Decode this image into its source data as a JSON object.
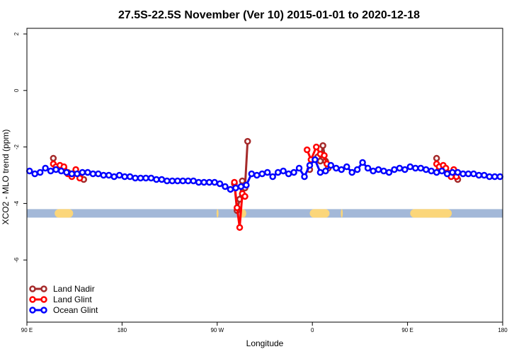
{
  "chart_data": {
    "type": "line",
    "title": "27.5S-22.5S November (Ver 10)   2015-01-01 to 2020-12-18",
    "xlabel": "Longitude",
    "ylabel": "XCO2 - MLO trend (ppm)",
    "xlim": [
      90,
      450
    ],
    "ylim": [
      -8.2,
      2.2
    ],
    "x_ticks": [
      {
        "value": 90,
        "label": "90 E"
      },
      {
        "value": 162,
        "label": "180"
      },
      {
        "value": 234,
        "label": "90 W"
      },
      {
        "value": 306,
        "label": "0"
      },
      {
        "value": 378,
        "label": "90 E"
      },
      {
        "value": 450,
        "label": "180"
      }
    ],
    "y_ticks": [
      {
        "value": 2,
        "label": "2"
      },
      {
        "value": 0,
        "label": "0"
      },
      {
        "value": -2,
        "label": "-2"
      },
      {
        "value": -4,
        "label": "-4"
      },
      {
        "value": -6,
        "label": "-6"
      }
    ],
    "land_band": {
      "y": -4.35,
      "ocean_color": "#a3b8d8",
      "land_color": "#fbd67a",
      "land_segments": [
        [
          111,
          125
        ],
        [
          233.5,
          235
        ],
        [
          251,
          256
        ],
        [
          304,
          319
        ],
        [
          327.5,
          329
        ],
        [
          380,
          411.5
        ]
      ]
    },
    "legend_position": "bottom-left",
    "series": [
      {
        "name": "Land Nadir",
        "color": "#a52a2a",
        "segments": [
          {
            "x": [
              110,
              112,
              115,
              118,
              121,
              124,
              127,
              130,
              133
            ],
            "y": [
              -2.4,
              -2.75,
              -2.7,
              -2.75,
              -2.9,
              -2.95,
              -2.9,
              -3.0,
              -3.15
            ]
          },
          {
            "x": [
              247,
              249,
              251,
              253,
              255,
              257
            ],
            "y": [
              -3.3,
              -4.25,
              -3.85,
              -3.2,
              -3.45,
              -1.8
            ]
          },
          {
            "x": [
              304,
              306,
              308,
              310,
              312,
              314,
              316,
              318
            ],
            "y": [
              -2.8,
              -2.45,
              -2.45,
              -2.35,
              -2.5,
              -1.95,
              -2.5,
              -2.75
            ]
          },
          {
            "x": [
              400,
              402,
              404,
              406,
              408,
              410,
              412,
              414,
              416
            ],
            "y": [
              -2.4,
              -2.75,
              -2.7,
              -2.75,
              -2.9,
              -2.95,
              -2.9,
              -3.0,
              -3.15
            ]
          }
        ]
      },
      {
        "name": "Land Glint",
        "color": "#ff0000",
        "segments": [
          {
            "x": [
              110,
              112,
              115,
              118,
              121,
              124,
              127,
              130
            ],
            "y": [
              -2.6,
              -2.7,
              -2.65,
              -2.7,
              -2.95,
              -3.05,
              -2.8,
              -3.1
            ]
          },
          {
            "x": [
              247,
              249,
              251,
              253,
              255
            ],
            "y": [
              -3.25,
              -4.15,
              -4.85,
              -3.65,
              -3.75
            ]
          },
          {
            "x": [
              302,
              305,
              309,
              312,
              315,
              317
            ],
            "y": [
              -2.1,
              -2.45,
              -2.0,
              -2.25,
              -2.3,
              -2.6
            ]
          },
          {
            "x": [
              400,
              402,
              405,
              407,
              409,
              411,
              413,
              415
            ],
            "y": [
              -2.6,
              -2.7,
              -2.65,
              -2.75,
              -2.95,
              -3.05,
              -2.8,
              -3.05
            ]
          }
        ]
      },
      {
        "name": "Ocean Glint",
        "color": "#0000ff",
        "segments": [
          {
            "x": [
              92,
              96,
              100,
              104,
              108,
              112,
              116,
              120,
              124,
              128,
              132,
              136,
              140,
              144,
              148,
              152,
              156,
              160,
              164,
              168,
              172,
              176,
              180,
              184,
              188,
              192,
              196,
              200,
              204,
              208,
              212,
              216,
              220,
              224,
              228,
              232,
              236,
              240,
              244,
              248,
              252,
              256,
              260,
              264,
              268,
              272,
              276,
              280,
              284,
              288,
              292,
              296,
              300,
              304,
              308,
              312,
              316,
              320,
              324,
              328,
              332,
              336,
              340,
              344,
              348,
              352,
              356,
              360,
              364,
              368,
              372,
              376,
              380,
              384,
              388,
              392,
              396,
              400,
              404,
              408,
              412,
              416,
              420,
              424,
              428,
              432,
              436,
              440,
              444,
              448
            ],
            "y": [
              -2.85,
              -2.95,
              -2.9,
              -2.75,
              -2.85,
              -2.8,
              -2.85,
              -2.9,
              -2.95,
              -2.95,
              -2.9,
              -2.9,
              -2.95,
              -2.95,
              -3.0,
              -3.0,
              -3.05,
              -3.0,
              -3.05,
              -3.05,
              -3.1,
              -3.1,
              -3.1,
              -3.1,
              -3.15,
              -3.15,
              -3.2,
              -3.2,
              -3.2,
              -3.2,
              -3.2,
              -3.2,
              -3.25,
              -3.25,
              -3.25,
              -3.25,
              -3.3,
              -3.4,
              -3.5,
              -3.45,
              -3.4,
              -3.35,
              -2.95,
              -3.0,
              -2.95,
              -2.9,
              -3.05,
              -2.9,
              -2.85,
              -2.95,
              -2.9,
              -2.75,
              -3.05,
              -2.65,
              -2.45,
              -2.9,
              -2.85,
              -2.65,
              -2.75,
              -2.8,
              -2.7,
              -2.9,
              -2.8,
              -2.55,
              -2.75,
              -2.85,
              -2.8,
              -2.85,
              -2.9,
              -2.8,
              -2.75,
              -2.8,
              -2.7,
              -2.75,
              -2.75,
              -2.8,
              -2.85,
              -2.9,
              -2.85,
              -2.95,
              -2.9,
              -2.9,
              -2.95,
              -2.95,
              -2.95,
              -3.0,
              -3.0,
              -3.05,
              -3.05,
              -3.05
            ]
          }
        ]
      }
    ]
  }
}
